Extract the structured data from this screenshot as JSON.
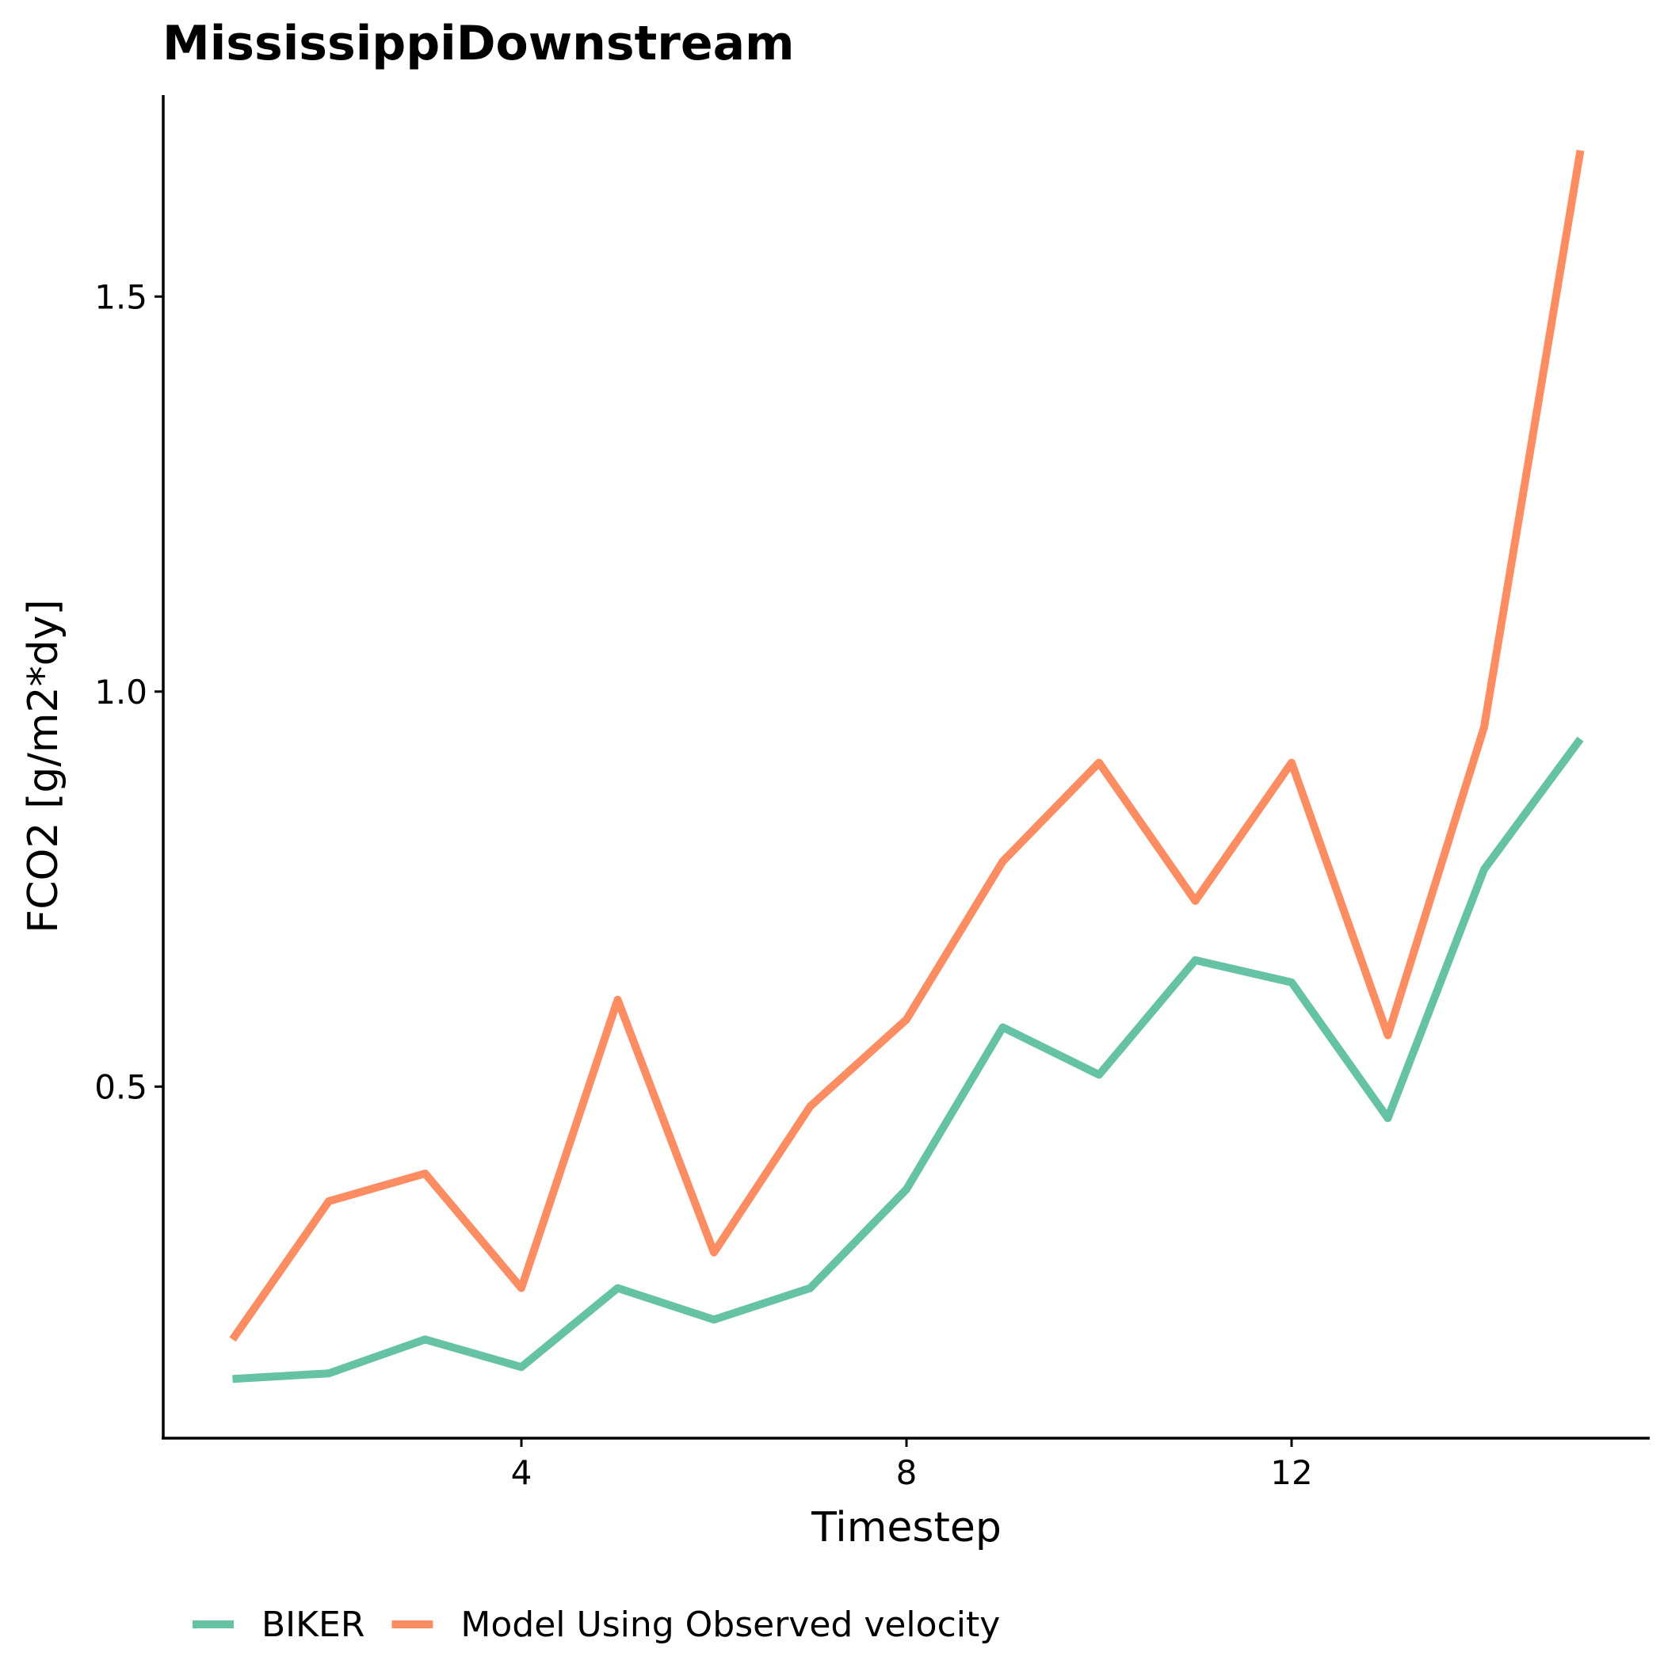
{
  "chart_data": {
    "type": "line",
    "title": "MississippiDownstream",
    "xlabel": "Timestep",
    "ylabel": "FCO2 [g/m2*dy]",
    "x": [
      1,
      2,
      3,
      4,
      5,
      6,
      7,
      8,
      9,
      10,
      11,
      12,
      13,
      14,
      15
    ],
    "xlim": [
      0.28,
      15.72
    ],
    "ylim": [
      0.055,
      1.755
    ],
    "xticks": [
      4,
      8,
      12
    ],
    "yticks": [
      0.5,
      1.0,
      1.5
    ],
    "xtick_labels": [
      "4",
      "8",
      "12"
    ],
    "ytick_labels": [
      "0.5",
      "1.0",
      "1.5"
    ],
    "grid": false,
    "legend_position": "bottom-left",
    "series": [
      {
        "name": "BIKER",
        "color": "#66c2a5",
        "values": [
          0.13,
          0.137,
          0.18,
          0.145,
          0.245,
          0.205,
          0.245,
          0.37,
          0.575,
          0.515,
          0.66,
          0.632,
          0.46,
          0.775,
          0.94
        ]
      },
      {
        "name": "Model Using Observed velocity",
        "color": "#fc8d62",
        "values": [
          0.18,
          0.355,
          0.39,
          0.245,
          0.61,
          0.29,
          0.475,
          0.585,
          0.785,
          0.91,
          0.735,
          0.91,
          0.565,
          0.955,
          1.685
        ]
      }
    ]
  }
}
